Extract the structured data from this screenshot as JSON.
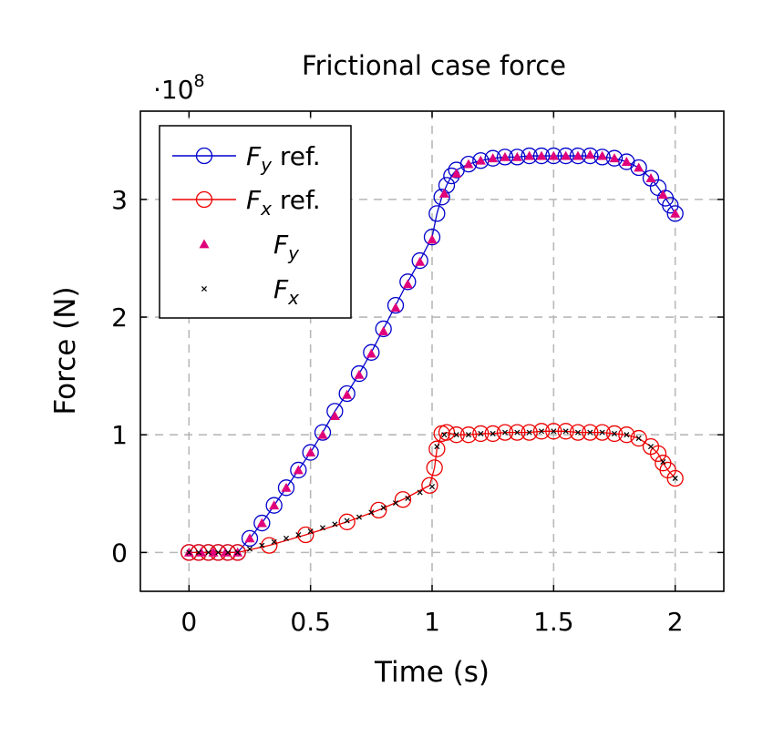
{
  "chart_data": {
    "type": "line",
    "title": "Frictional case force",
    "xlabel": "Time (s)",
    "ylabel": "Force (N)",
    "y_multiplier": "·10",
    "y_multiplier_exp": "8",
    "xlim": [
      -0.2,
      2.2
    ],
    "ylim": [
      -0.33,
      3.75
    ],
    "x_ticks": [
      0,
      0.5,
      1,
      1.5,
      2
    ],
    "x_tick_labels": [
      "0",
      "0.5",
      "1",
      "1.5",
      "2"
    ],
    "y_ticks": [
      0,
      1,
      2,
      3
    ],
    "y_tick_labels": [
      "0",
      "1",
      "2",
      "3"
    ],
    "grid": true,
    "legend_position": "top-left",
    "colors": {
      "fy_ref": "#0000cc",
      "fx_ref": "#ee0000",
      "fy": "#e0007a",
      "fx": "#000000"
    },
    "series": [
      {
        "name": "F_y ref.",
        "legend_main": "F",
        "legend_sub": "y",
        "legend_suffix": " ref.",
        "marker": "circle",
        "line": true,
        "color": "#0000cc",
        "x": [
          0,
          0.04,
          0.08,
          0.12,
          0.16,
          0.2,
          0.25,
          0.3,
          0.35,
          0.4,
          0.45,
          0.5,
          0.55,
          0.6,
          0.65,
          0.7,
          0.75,
          0.8,
          0.85,
          0.9,
          0.95,
          1.0,
          1.02,
          1.04,
          1.06,
          1.08,
          1.1,
          1.15,
          1.2,
          1.25,
          1.3,
          1.35,
          1.4,
          1.45,
          1.5,
          1.55,
          1.6,
          1.65,
          1.7,
          1.75,
          1.8,
          1.85,
          1.9,
          1.93,
          1.96,
          1.98,
          2.0
        ],
        "y": [
          0,
          0,
          0,
          0,
          0,
          0,
          0.12,
          0.25,
          0.4,
          0.55,
          0.7,
          0.85,
          1.02,
          1.2,
          1.35,
          1.52,
          1.7,
          1.9,
          2.1,
          2.3,
          2.48,
          2.68,
          2.88,
          3.02,
          3.12,
          3.2,
          3.25,
          3.3,
          3.33,
          3.35,
          3.36,
          3.36,
          3.37,
          3.37,
          3.37,
          3.37,
          3.37,
          3.37,
          3.36,
          3.35,
          3.32,
          3.27,
          3.18,
          3.1,
          3.01,
          2.95,
          2.88
        ]
      },
      {
        "name": "F_x ref.",
        "legend_main": "F",
        "legend_sub": "x",
        "legend_suffix": " ref.",
        "marker": "circle",
        "line": true,
        "color": "#ee0000",
        "x": [
          0,
          0.04,
          0.08,
          0.12,
          0.16,
          0.2,
          0.33,
          0.48,
          0.65,
          0.78,
          0.88,
          0.99,
          1.01,
          1.02,
          1.04,
          1.06,
          1.1,
          1.15,
          1.2,
          1.25,
          1.3,
          1.35,
          1.4,
          1.45,
          1.5,
          1.55,
          1.6,
          1.65,
          1.7,
          1.75,
          1.8,
          1.85,
          1.9,
          1.93,
          1.95,
          1.97,
          2.0
        ],
        "y": [
          0,
          0,
          0,
          0,
          0,
          0,
          0.06,
          0.15,
          0.26,
          0.36,
          0.45,
          0.57,
          0.72,
          0.88,
          1.01,
          1.02,
          1.0,
          1.0,
          1.01,
          1.01,
          1.02,
          1.02,
          1.02,
          1.03,
          1.03,
          1.03,
          1.02,
          1.02,
          1.02,
          1.01,
          1.0,
          0.97,
          0.9,
          0.84,
          0.76,
          0.7,
          0.63
        ]
      },
      {
        "name": "F_y",
        "legend_main": "F",
        "legend_sub": "y",
        "legend_suffix": "",
        "marker": "triangle",
        "line": false,
        "color": "#e0007a",
        "x": [
          0,
          0.05,
          0.1,
          0.15,
          0.2,
          0.25,
          0.3,
          0.35,
          0.4,
          0.45,
          0.5,
          0.55,
          0.6,
          0.65,
          0.7,
          0.75,
          0.8,
          0.85,
          0.9,
          0.95,
          1.0,
          1.05,
          1.1,
          1.15,
          1.2,
          1.25,
          1.3,
          1.35,
          1.4,
          1.45,
          1.5,
          1.55,
          1.6,
          1.65,
          1.7,
          1.75,
          1.8,
          1.85,
          1.9,
          1.95,
          2.0
        ],
        "y": [
          0,
          0,
          0,
          0,
          0,
          0.12,
          0.25,
          0.4,
          0.55,
          0.7,
          0.85,
          1.0,
          1.16,
          1.34,
          1.51,
          1.69,
          1.88,
          2.08,
          2.28,
          2.47,
          2.66,
          3.05,
          3.22,
          3.3,
          3.33,
          3.35,
          3.36,
          3.36,
          3.37,
          3.37,
          3.37,
          3.37,
          3.37,
          3.38,
          3.37,
          3.35,
          3.32,
          3.27,
          3.18,
          3.04,
          2.88
        ]
      },
      {
        "name": "F_x",
        "legend_main": "F",
        "legend_sub": "x",
        "legend_suffix": "",
        "marker": "cross",
        "line": false,
        "color": "#000000",
        "x": [
          0,
          0.04,
          0.08,
          0.12,
          0.16,
          0.2,
          0.25,
          0.3,
          0.35,
          0.4,
          0.45,
          0.5,
          0.55,
          0.6,
          0.65,
          0.7,
          0.75,
          0.8,
          0.85,
          0.9,
          0.95,
          1.0,
          1.02,
          1.05,
          1.1,
          1.15,
          1.2,
          1.25,
          1.3,
          1.35,
          1.4,
          1.45,
          1.5,
          1.55,
          1.6,
          1.65,
          1.7,
          1.75,
          1.8,
          1.85,
          1.9,
          1.95,
          2.0
        ],
        "y": [
          0,
          0,
          0,
          0,
          0,
          0,
          0.03,
          0.06,
          0.09,
          0.12,
          0.15,
          0.18,
          0.21,
          0.24,
          0.27,
          0.3,
          0.34,
          0.38,
          0.42,
          0.46,
          0.51,
          0.56,
          0.9,
          1.0,
          1.0,
          1.0,
          1.01,
          1.01,
          1.02,
          1.02,
          1.02,
          1.03,
          1.03,
          1.03,
          1.02,
          1.02,
          1.02,
          1.01,
          1.0,
          0.97,
          0.9,
          0.77,
          0.63
        ]
      }
    ]
  }
}
